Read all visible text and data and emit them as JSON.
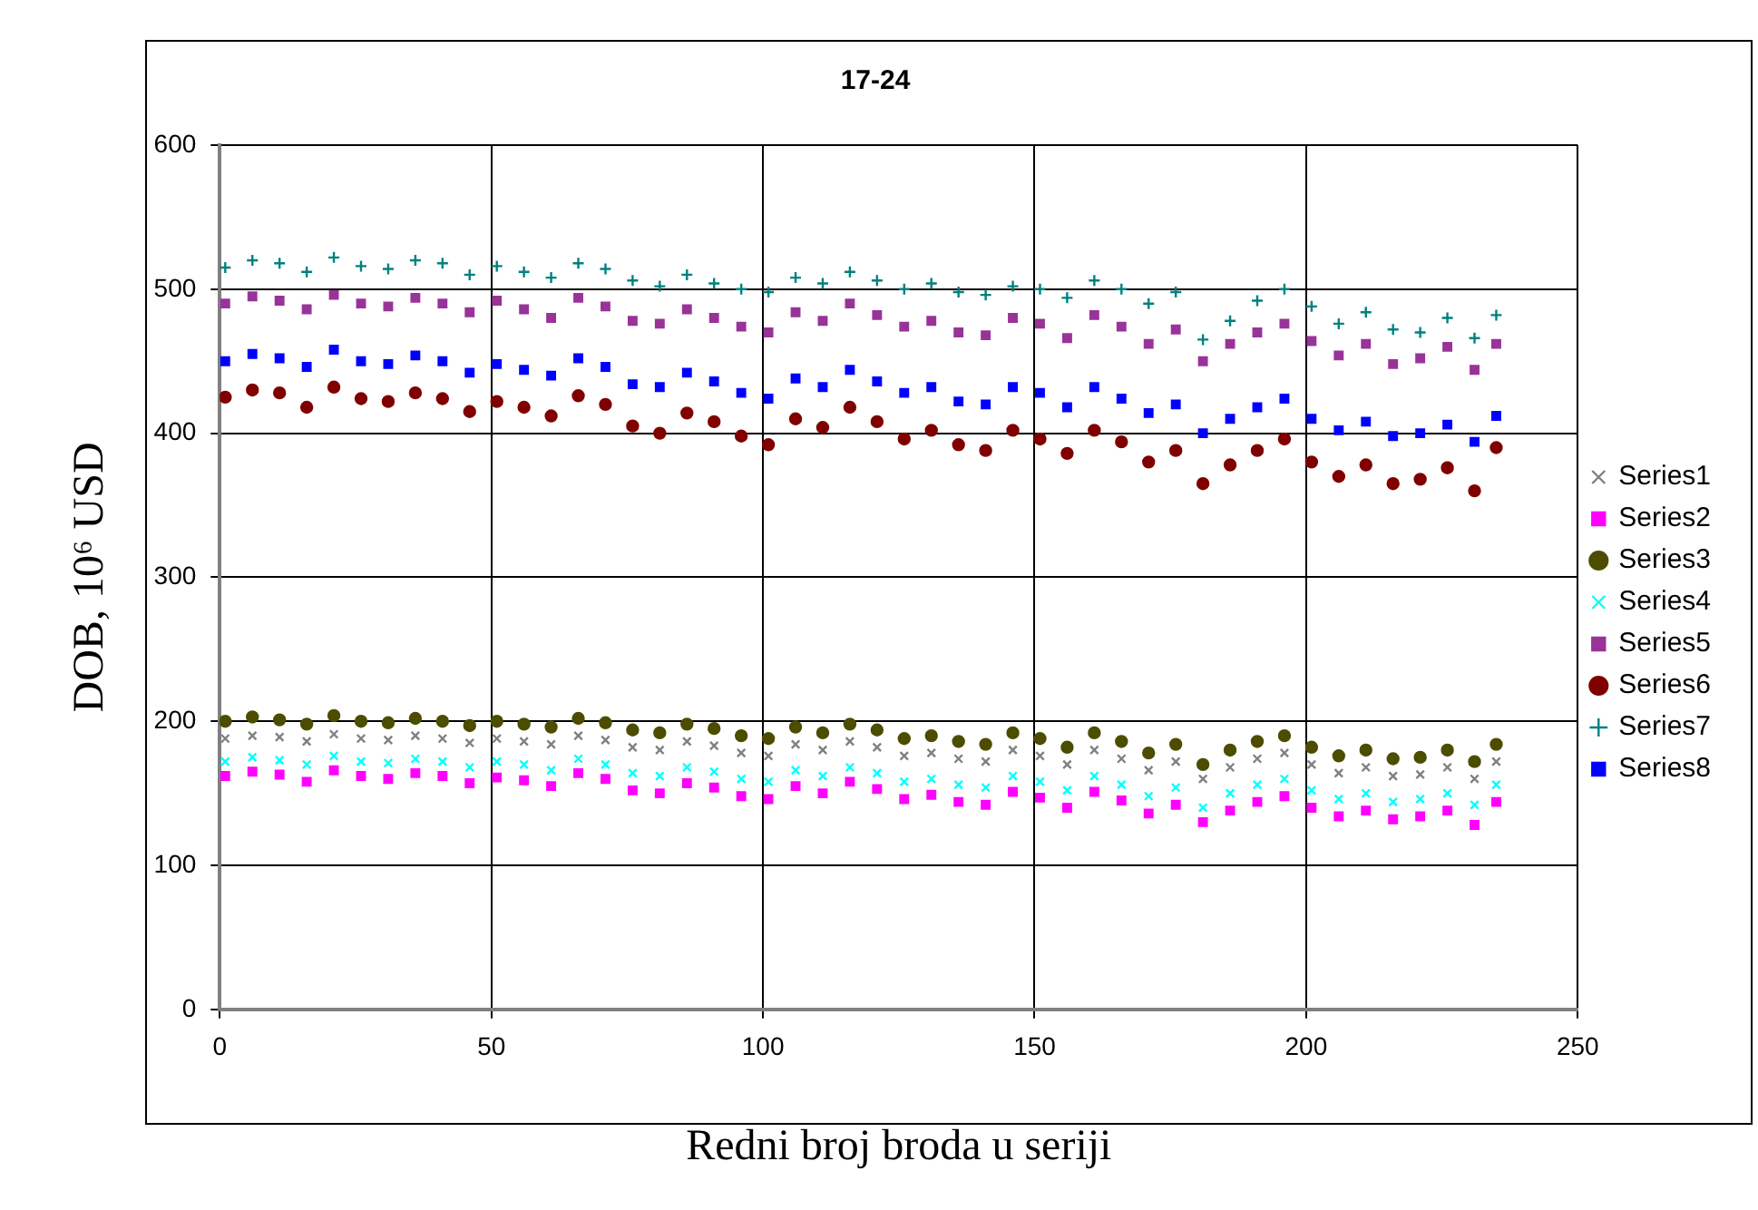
{
  "chart_data": {
    "type": "scatter",
    "title": "17-24",
    "xlabel": "Redni broj broda u seriji",
    "ylabel": "DOB, 10⁶ USD",
    "x": [
      1,
      6,
      11,
      16,
      21,
      26,
      31,
      36,
      41,
      46,
      51,
      56,
      61,
      66,
      71,
      76,
      81,
      86,
      91,
      96,
      101,
      106,
      111,
      116,
      121,
      126,
      131,
      136,
      141,
      146,
      151,
      156,
      161,
      166,
      171,
      176,
      181,
      186,
      191,
      196,
      201,
      206,
      211,
      216,
      221,
      226,
      231,
      235
    ],
    "xlim": [
      0,
      250
    ],
    "xticks": [
      0,
      50,
      100,
      150,
      200,
      250
    ],
    "ylim": [
      0,
      600
    ],
    "yticks": [
      0,
      100,
      200,
      300,
      400,
      500,
      600
    ],
    "grid": true,
    "legend": "right",
    "series": [
      {
        "name": "Series1",
        "color": "#808080",
        "marker": "x",
        "values": [
          188,
          190,
          189,
          186,
          191,
          188,
          187,
          190,
          188,
          185,
          188,
          186,
          184,
          190,
          187,
          182,
          180,
          186,
          183,
          178,
          176,
          184,
          180,
          186,
          182,
          176,
          178,
          174,
          172,
          180,
          176,
          170,
          180,
          174,
          166,
          172,
          160,
          168,
          174,
          178,
          170,
          164,
          168,
          162,
          163,
          168,
          160,
          172
        ]
      },
      {
        "name": "Series2",
        "color": "#ff00ff",
        "marker": "square",
        "values": [
          162,
          165,
          163,
          158,
          166,
          162,
          160,
          164,
          162,
          157,
          161,
          159,
          155,
          164,
          160,
          152,
          150,
          157,
          154,
          148,
          146,
          155,
          150,
          158,
          153,
          146,
          149,
          144,
          142,
          151,
          147,
          140,
          151,
          145,
          136,
          142,
          130,
          138,
          144,
          148,
          140,
          134,
          138,
          132,
          134,
          138,
          128,
          144
        ]
      },
      {
        "name": "Series3",
        "color": "#4d4d00",
        "marker": "circle",
        "values": [
          200,
          203,
          201,
          198,
          204,
          200,
          199,
          202,
          200,
          197,
          200,
          198,
          196,
          202,
          199,
          194,
          192,
          198,
          195,
          190,
          188,
          196,
          192,
          198,
          194,
          188,
          190,
          186,
          184,
          192,
          188,
          182,
          192,
          186,
          178,
          184,
          170,
          180,
          186,
          190,
          182,
          176,
          180,
          174,
          175,
          180,
          172,
          184
        ]
      },
      {
        "name": "Series4",
        "color": "#00ffff",
        "marker": "x",
        "values": [
          172,
          175,
          173,
          170,
          176,
          172,
          171,
          174,
          172,
          168,
          172,
          170,
          166,
          174,
          170,
          164,
          162,
          168,
          165,
          160,
          158,
          166,
          162,
          168,
          164,
          158,
          160,
          156,
          154,
          162,
          158,
          152,
          162,
          156,
          148,
          154,
          140,
          150,
          156,
          160,
          152,
          146,
          150,
          144,
          146,
          150,
          142,
          156
        ]
      },
      {
        "name": "Series5",
        "color": "#993399",
        "marker": "square",
        "values": [
          490,
          495,
          492,
          486,
          496,
          490,
          488,
          494,
          490,
          484,
          492,
          486,
          480,
          494,
          488,
          478,
          476,
          486,
          480,
          474,
          470,
          484,
          478,
          490,
          482,
          474,
          478,
          470,
          468,
          480,
          476,
          466,
          482,
          474,
          462,
          472,
          450,
          462,
          470,
          476,
          464,
          454,
          462,
          448,
          452,
          460,
          444,
          462
        ]
      },
      {
        "name": "Series6",
        "color": "#800000",
        "marker": "circle",
        "values": [
          425,
          430,
          428,
          418,
          432,
          424,
          422,
          428,
          424,
          415,
          422,
          418,
          412,
          426,
          420,
          405,
          400,
          414,
          408,
          398,
          392,
          410,
          404,
          418,
          408,
          396,
          402,
          392,
          388,
          402,
          396,
          386,
          402,
          394,
          380,
          388,
          365,
          378,
          388,
          396,
          380,
          370,
          378,
          365,
          368,
          376,
          360,
          390
        ]
      },
      {
        "name": "Series7",
        "color": "#008080",
        "marker": "cross",
        "values": [
          515,
          520,
          518,
          512,
          522,
          516,
          514,
          520,
          518,
          510,
          516,
          512,
          508,
          518,
          514,
          506,
          502,
          510,
          504,
          500,
          498,
          508,
          504,
          512,
          506,
          500,
          504,
          498,
          496,
          502,
          500,
          494,
          506,
          500,
          490,
          498,
          465,
          478,
          492,
          500,
          488,
          476,
          484,
          472,
          470,
          480,
          466,
          482
        ]
      },
      {
        "name": "Series8",
        "color": "#0000ff",
        "marker": "square",
        "values": [
          450,
          455,
          452,
          446,
          458,
          450,
          448,
          454,
          450,
          442,
          448,
          444,
          440,
          452,
          446,
          434,
          432,
          442,
          436,
          428,
          424,
          438,
          432,
          444,
          436,
          428,
          432,
          422,
          420,
          432,
          428,
          418,
          432,
          424,
          414,
          420,
          400,
          410,
          418,
          424,
          410,
          402,
          408,
          398,
          400,
          406,
          394,
          412
        ]
      }
    ]
  }
}
